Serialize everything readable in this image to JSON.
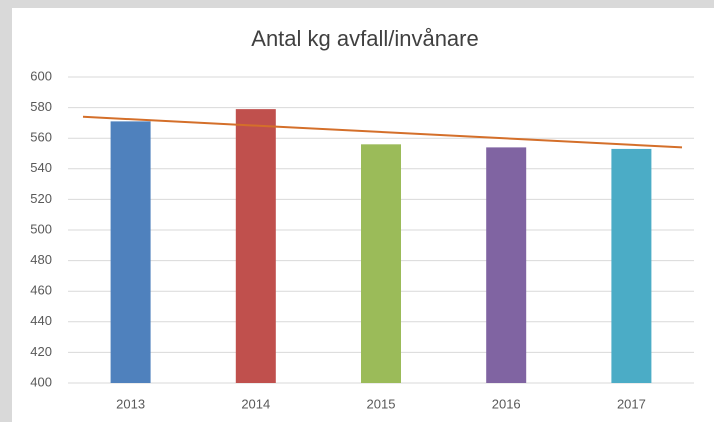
{
  "chart_data": {
    "type": "bar",
    "title": "Antal kg avfall/invånare",
    "categories": [
      "2013",
      "2014",
      "2015",
      "2016",
      "2017"
    ],
    "values": [
      571,
      579,
      556,
      554,
      553
    ],
    "colors": [
      "#4f81bd",
      "#c0504d",
      "#9bbb59",
      "#8064a2",
      "#4bacc6"
    ],
    "ylim": [
      400,
      600
    ],
    "yticks": [
      400,
      420,
      440,
      460,
      480,
      500,
      520,
      540,
      560,
      580,
      600
    ],
    "grid": true,
    "trendline": {
      "start": 574,
      "end": 554,
      "color": "#d46f2a"
    }
  }
}
